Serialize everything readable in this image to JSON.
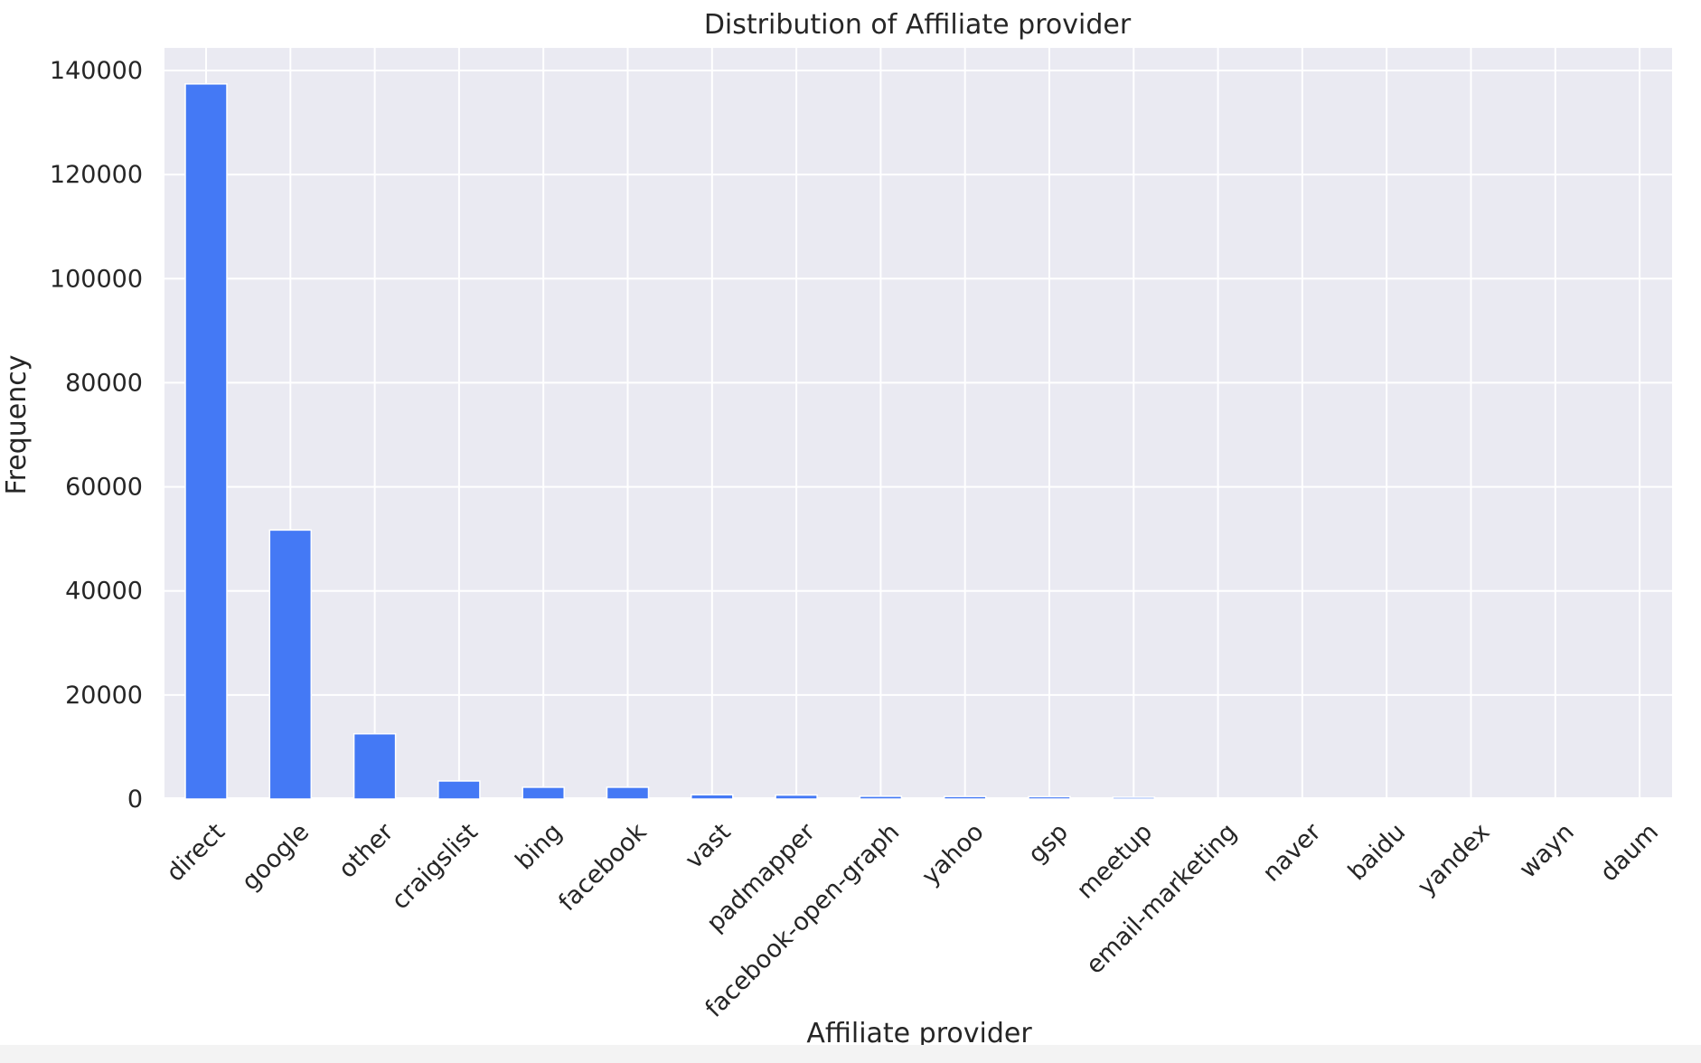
{
  "chart_data": {
    "type": "bar",
    "title": "Distribution of Affiliate provider",
    "xlabel": "Affiliate provider",
    "ylabel": "Frequency",
    "categories": [
      "direct",
      "google",
      "other",
      "craigslist",
      "bing",
      "facebook",
      "vast",
      "padmapper",
      "facebook-open-graph",
      "yahoo",
      "gsp",
      "meetup",
      "email-marketing",
      "naver",
      "baidu",
      "yandex",
      "wayn",
      "daum"
    ],
    "values": [
      137426,
      51693,
      12549,
      3475,
      2273,
      2273,
      829,
      768,
      545,
      496,
      453,
      347,
      166,
      52,
      29,
      17,
      8,
      1
    ],
    "ylim": [
      0,
      145000
    ],
    "yticks": [
      0,
      20000,
      40000,
      60000,
      80000,
      100000,
      120000,
      140000
    ],
    "grid": true,
    "colors": {
      "bar": "#4479f5",
      "plot_background": "#eaeaf2",
      "grid": "#ffffff"
    }
  }
}
